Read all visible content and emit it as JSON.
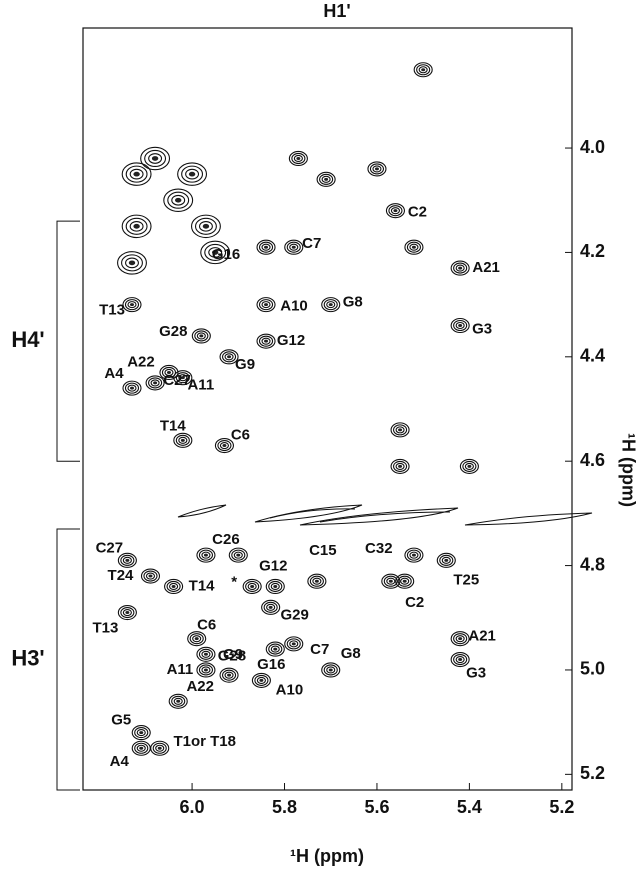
{
  "chart_data": {
    "type": "contour",
    "title": "H1'",
    "x_label": "¹H (ppm)",
    "y_label": "¹H (ppm)",
    "xlim": [
      6.236,
      5.178
    ],
    "ylim": [
      3.77,
      5.23
    ],
    "xticks": [
      {
        "value": 6,
        "label": "6.0"
      },
      {
        "value": 5.8,
        "label": "5.8"
      },
      {
        "value": 5.6,
        "label": "5.6"
      },
      {
        "value": 5.4,
        "label": "5.4"
      },
      {
        "value": 5.2,
        "label": "5.2"
      }
    ],
    "yticks": [
      {
        "value": 4,
        "label": "4.0"
      },
      {
        "value": 4.2,
        "label": "4.2"
      },
      {
        "value": 4.4,
        "label": "4.4"
      },
      {
        "value": 4.6,
        "label": "4.6"
      },
      {
        "value": 4.8,
        "label": "4.8"
      },
      {
        "value": 5,
        "label": "5.0"
      },
      {
        "value": 5.2,
        "label": "5.2"
      }
    ],
    "regions": [
      {
        "label": "H4'",
        "range": [
          4.14,
          4.6
        ]
      },
      {
        "label": "H3'",
        "range": [
          4.73,
          5.23
        ]
      }
    ],
    "peaks": [
      {
        "label": "C2",
        "x": 5.56,
        "y": 4.12
      },
      {
        "label": "G16",
        "x": 5.84,
        "y": 4.19
      },
      {
        "label": "C7",
        "x": 5.78,
        "y": 4.19
      },
      {
        "label": "A10",
        "x": 5.84,
        "y": 4.3
      },
      {
        "label": "G8",
        "x": 5.7,
        "y": 4.3
      },
      {
        "label": "A21",
        "x": 5.42,
        "y": 4.23
      },
      {
        "label": "G3",
        "x": 5.42,
        "y": 4.34
      },
      {
        "label": "G12",
        "x": 5.84,
        "y": 4.37
      },
      {
        "label": "G28",
        "x": 5.98,
        "y": 4.36
      },
      {
        "label": "G9",
        "x": 5.92,
        "y": 4.4
      },
      {
        "label": "A22",
        "x": 6.05,
        "y": 4.43
      },
      {
        "label": "A11",
        "x": 6.02,
        "y": 4.44
      },
      {
        "label": "T13",
        "x": 6.13,
        "y": 4.3
      },
      {
        "label": "A4",
        "x": 6.13,
        "y": 4.46
      },
      {
        "label": "C27",
        "x": 6.08,
        "y": 4.45
      },
      {
        "label": "T14",
        "x": 6.02,
        "y": 4.56
      },
      {
        "label": "C6",
        "x": 5.93,
        "y": 4.57
      },
      {
        "label": "C26",
        "x": 5.97,
        "y": 4.78
      },
      {
        "label": "C27",
        "x": 6.14,
        "y": 4.79
      },
      {
        "label": "T24",
        "x": 6.09,
        "y": 4.82
      },
      {
        "label": "T14",
        "x": 6.04,
        "y": 4.84
      },
      {
        "label": "*",
        "x": 5.87,
        "y": 4.84
      },
      {
        "label": "G12",
        "x": 5.82,
        "y": 4.84
      },
      {
        "label": "C15",
        "x": 5.73,
        "y": 4.83
      },
      {
        "label": "C32",
        "x": 5.57,
        "y": 4.83
      },
      {
        "label": "C2",
        "x": 5.54,
        "y": 4.83
      },
      {
        "label": "T25",
        "x": 5.45,
        "y": 4.79
      },
      {
        "label": "G29",
        "x": 5.83,
        "y": 4.88
      },
      {
        "label": "T13",
        "x": 6.14,
        "y": 4.89
      },
      {
        "label": "C6",
        "x": 5.99,
        "y": 4.94
      },
      {
        "label": "G28",
        "x": 5.97,
        "y": 4.97
      },
      {
        "label": "A11",
        "x": 5.97,
        "y": 5.0
      },
      {
        "label": "G16",
        "x": 5.82,
        "y": 4.96
      },
      {
        "label": "C7",
        "x": 5.78,
        "y": 4.95
      },
      {
        "label": "G9",
        "x": 5.92,
        "y": 5.01
      },
      {
        "label": "A10",
        "x": 5.85,
        "y": 5.02
      },
      {
        "label": "G8",
        "x": 5.7,
        "y": 5.0
      },
      {
        "label": "A21",
        "x": 5.42,
        "y": 4.94
      },
      {
        "label": "G3",
        "x": 5.42,
        "y": 4.98
      },
      {
        "label": "A22",
        "x": 6.03,
        "y": 5.06
      },
      {
        "label": "G5",
        "x": 6.11,
        "y": 5.12
      },
      {
        "label": "A4",
        "x": 6.11,
        "y": 5.15
      },
      {
        "label": "T1or T18",
        "x": 6.07,
        "y": 5.15
      }
    ],
    "unlabeled_peaks": {
      "x": [
        5.5,
        6.12,
        6.12,
        6.08,
        6.03,
        6.0,
        5.97,
        5.95,
        6.13,
        5.77,
        5.71,
        5.6,
        5.52,
        5.55,
        5.55,
        5.4,
        5.52,
        5.9
      ],
      "y": [
        3.85,
        4.05,
        4.15,
        4.02,
        4.1,
        4.05,
        4.15,
        4.2,
        4.22,
        4.02,
        4.06,
        4.04,
        4.19,
        4.54,
        4.61,
        4.61,
        4.78,
        4.78
      ]
    }
  }
}
